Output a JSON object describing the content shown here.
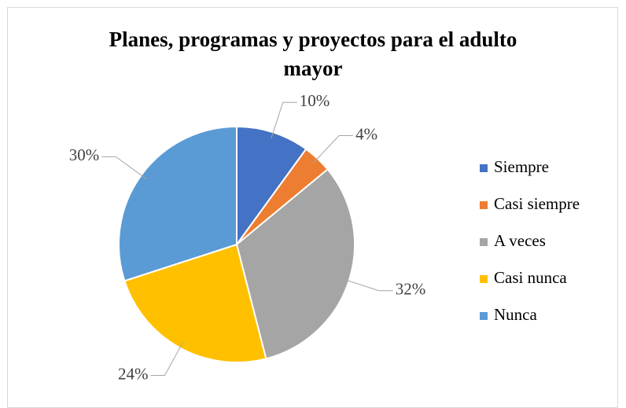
{
  "chart_data": {
    "type": "pie",
    "title": "Planes, programas y proyectos para el adulto mayor",
    "categories": [
      "Siempre",
      "Casi siempre",
      "A veces",
      "Casi nunca",
      "Nunca"
    ],
    "values": [
      10,
      4,
      32,
      24,
      30
    ],
    "value_labels": [
      "10%",
      "4%",
      "32%",
      "24%",
      "30%"
    ],
    "colors": [
      "#4472c4",
      "#ed7d31",
      "#a5a5a5",
      "#ffc000",
      "#5b9bd5"
    ],
    "legend": "right"
  }
}
